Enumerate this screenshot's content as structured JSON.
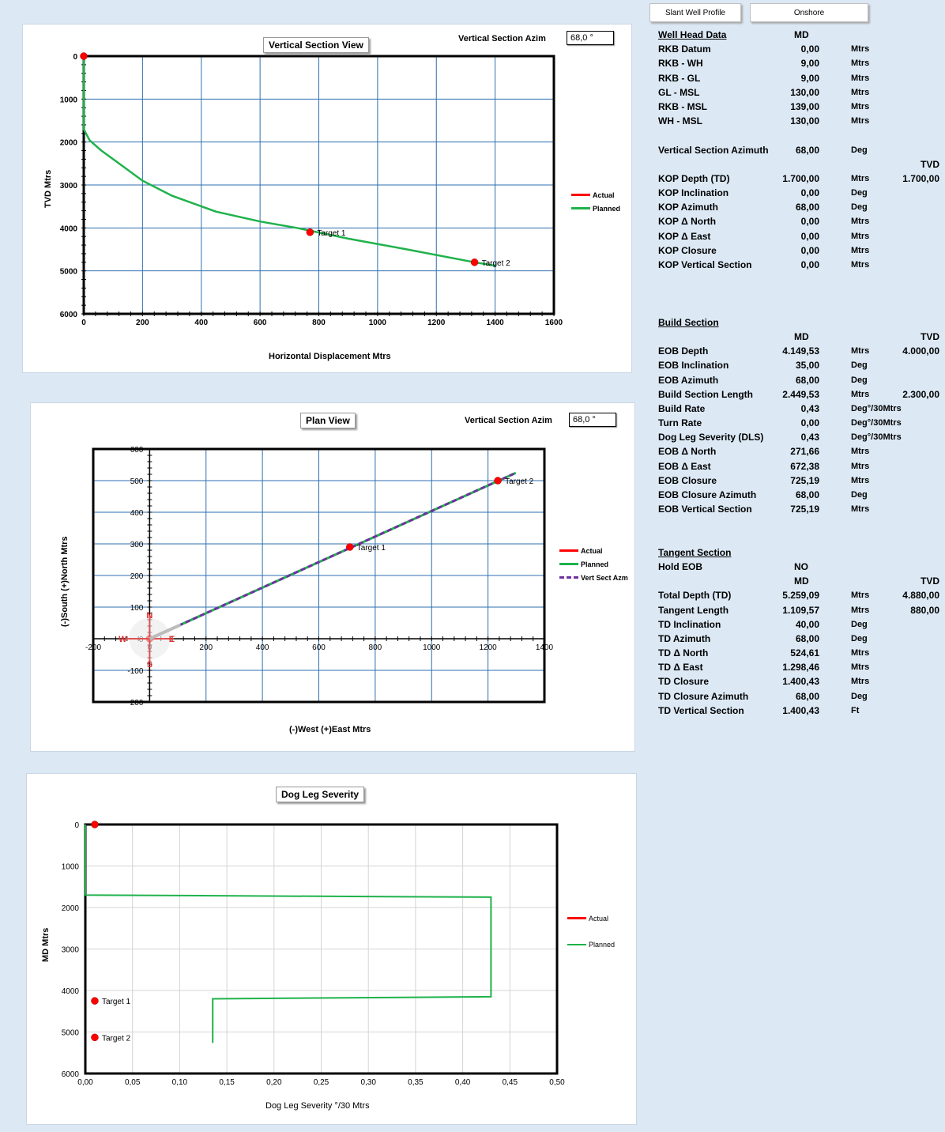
{
  "header": {
    "profile_button": "Slant Well Profile",
    "location_button": "Onshore"
  },
  "vertical_section": {
    "title": "Vertical Section View",
    "azim_label": "Vertical Section Azim",
    "azim_value": "68,0 °",
    "chart_data": {
      "type": "line",
      "xlabel": "Horizontal Displacement  Mtrs",
      "ylabel": "TVD Mtrs",
      "xlim": [
        0,
        1600
      ],
      "ylim": [
        0,
        6000
      ],
      "y_inverted": true,
      "x_ticks": [
        "0",
        "200",
        "400",
        "600",
        "800",
        "1000",
        "1200",
        "1400",
        "1600"
      ],
      "y_ticks": [
        "0",
        "1000",
        "2000",
        "3000",
        "4000",
        "5000",
        "6000"
      ],
      "grid": true,
      "legend_position": "right",
      "legend": [
        "Actual",
        "Planned"
      ],
      "series": [
        {
          "name": "Planned",
          "color": "#1fb24b",
          "points": [
            [
              0,
              0
            ],
            [
              0,
              1700
            ],
            [
              20,
              1960
            ],
            [
              60,
              2200
            ],
            [
              120,
              2500
            ],
            [
              200,
              2900
            ],
            [
              300,
              3250
            ],
            [
              450,
              3620
            ],
            [
              600,
              3850
            ],
            [
              725,
              4000
            ],
            [
              900,
              4250
            ],
            [
              1100,
              4500
            ],
            [
              1330,
              4800
            ],
            [
              1400,
              4880
            ]
          ]
        },
        {
          "name": "Actual",
          "color": "#ff0000",
          "points": [
            [
              0,
              0
            ]
          ]
        }
      ],
      "targets": [
        {
          "label": "Target 1",
          "x": 770,
          "y": 4100
        },
        {
          "label": "Target 2",
          "x": 1330,
          "y": 4800
        }
      ]
    }
  },
  "plan_view": {
    "title": "Plan View",
    "azim_label": "Vertical Section Azim",
    "azim_value": "68,0 °",
    "compass": {
      "n": "N",
      "s": "S",
      "e": "E",
      "w": "W"
    },
    "chart_data": {
      "type": "line",
      "xlabel": "(-)West  (+)East  Mtrs",
      "ylabel": "(-)South (+)North Mtrs",
      "xlim": [
        -200,
        1400
      ],
      "ylim": [
        -200,
        600
      ],
      "x_ticks": [
        "-200",
        "0",
        "200",
        "400",
        "600",
        "800",
        "1000",
        "1200",
        "1400"
      ],
      "y_ticks": [
        "-200",
        "-100",
        "0",
        "100",
        "200",
        "300",
        "400",
        "500",
        "600"
      ],
      "grid": true,
      "legend_position": "right",
      "legend": [
        "Actual",
        "Planned",
        "Vert Sect Azm"
      ],
      "series": [
        {
          "name": "Planned",
          "color": "#1fb24b",
          "points": [
            [
              0,
              0
            ],
            [
              1298.46,
              524.61
            ]
          ]
        },
        {
          "name": "Vert Sect Azm",
          "color": "#7030a0",
          "points": [
            [
              0,
              0
            ],
            [
              1298.46,
              524.61
            ]
          ]
        },
        {
          "name": "Actual",
          "color": "#ff0000",
          "points": [
            [
              0,
              0
            ]
          ]
        }
      ],
      "targets": [
        {
          "label": "Target 1",
          "x": 710,
          "y": 290
        },
        {
          "label": "Target 2",
          "x": 1235,
          "y": 500
        }
      ]
    }
  },
  "dls_chart": {
    "title": "Dog Leg Severity",
    "chart_data": {
      "type": "line",
      "xlabel": "Dog Leg Severity  °/30 Mtrs",
      "ylabel": "MD Mtrs",
      "xlim": [
        0,
        0.5
      ],
      "ylim": [
        0,
        6000
      ],
      "y_inverted": true,
      "x_ticks": [
        "0,00",
        "0,05",
        "0,10",
        "0,15",
        "0,20",
        "0,25",
        "0,30",
        "0,35",
        "0,40",
        "0,45",
        "0,50"
      ],
      "y_ticks": [
        "0",
        "1000",
        "2000",
        "3000",
        "4000",
        "5000",
        "6000"
      ],
      "grid": true,
      "legend_position": "right",
      "legend": [
        "Actual",
        "Planned"
      ],
      "series": [
        {
          "name": "Planned",
          "color": "#1fb24b",
          "points": [
            [
              0,
              0
            ],
            [
              0,
              1700
            ],
            [
              0.43,
              1750
            ],
            [
              0.43,
              4150
            ],
            [
              0.135,
              4200
            ],
            [
              0.135,
              5260
            ]
          ]
        },
        {
          "name": "Actual",
          "color": "#ff0000",
          "points": [
            [
              0.01,
              0
            ]
          ]
        }
      ],
      "targets": [
        {
          "label": "Target 1",
          "x": 0.01,
          "y": 4250
        },
        {
          "label": "Target 2",
          "x": 0.01,
          "y": 5130
        }
      ]
    }
  },
  "well_data": {
    "rows": [
      {
        "label": "Well Head Data",
        "md": "MD",
        "section": true,
        "md_header": true
      },
      {
        "label": "RKB Datum",
        "md": "0,00",
        "unit": "Mtrs"
      },
      {
        "label": "RKB - WH",
        "md": "9,00",
        "unit": "Mtrs"
      },
      {
        "label": "RKB - GL",
        "md": "9,00",
        "unit": "Mtrs"
      },
      {
        "label": "GL - MSL",
        "md": "130,00",
        "unit": "Mtrs"
      },
      {
        "label": "RKB - MSL",
        "md": "139,00",
        "unit": "Mtrs"
      },
      {
        "label": "WH - MSL",
        "md": "130,00",
        "unit": "Mtrs"
      },
      {
        "label": ""
      },
      {
        "label": "Vertical Section Azimuth",
        "md": "68,00",
        "unit": "Deg"
      },
      {
        "label": "",
        "tvd": "TVD"
      },
      {
        "label": "KOP Depth (TD)",
        "md": "1.700,00",
        "unit": "Mtrs",
        "tvd": "1.700,00"
      },
      {
        "label": "KOP Inclination",
        "md": "0,00",
        "unit": "Deg"
      },
      {
        "label": "KOP Azimuth",
        "md": "68,00",
        "unit": "Deg"
      },
      {
        "label": "KOP Δ North",
        "md": "0,00",
        "unit": "Mtrs"
      },
      {
        "label": "KOP Δ East",
        "md": "0,00",
        "unit": "Mtrs"
      },
      {
        "label": "KOP Closure",
        "md": "0,00",
        "unit": "Mtrs"
      },
      {
        "label": "KOP Vertical Section",
        "md": "0,00",
        "unit": "Mtrs"
      },
      {
        "label": ""
      },
      {
        "label": ""
      },
      {
        "label": ""
      },
      {
        "label": "Build Section",
        "section": true
      },
      {
        "label": "",
        "md": "MD",
        "tvd": "TVD",
        "md_header": true
      },
      {
        "label": "EOB Depth",
        "md": "4.149,53",
        "unit": "Mtrs",
        "tvd": "4.000,00"
      },
      {
        "label": "EOB Inclination",
        "md": "35,00",
        "unit": "Deg"
      },
      {
        "label": "EOB Azimuth",
        "md": "68,00",
        "unit": "Deg"
      },
      {
        "label": "Build Section Length",
        "md": "2.449,53",
        "unit": "Mtrs",
        "tvd": "2.300,00"
      },
      {
        "label": "Build Rate",
        "md": "0,43",
        "unit": "Deg°/30Mtrs"
      },
      {
        "label": "Turn Rate",
        "md": "0,00",
        "unit": "Deg°/30Mtrs"
      },
      {
        "label": "Dog Leg Severity (DLS)",
        "md": "0,43",
        "unit": "Deg°/30Mtrs"
      },
      {
        "label": "EOB Δ North",
        "md": "271,66",
        "unit": "Mtrs"
      },
      {
        "label": "EOB Δ East",
        "md": "672,38",
        "unit": "Mtrs"
      },
      {
        "label": "EOB Closure",
        "md": "725,19",
        "unit": "Mtrs"
      },
      {
        "label": "EOB Closure Azimuth",
        "md": "68,00",
        "unit": "Deg"
      },
      {
        "label": "EOB Vertical Section",
        "md": "725,19",
        "unit": "Mtrs"
      },
      {
        "label": ""
      },
      {
        "label": ""
      },
      {
        "label": "Tangent Section",
        "section": true
      },
      {
        "label": "Hold EOB",
        "md": "NO",
        "md_header": true
      },
      {
        "label": "",
        "md": "MD",
        "tvd": "TVD",
        "md_header": true
      },
      {
        "label": "Total Depth (TD)",
        "md": "5.259,09",
        "unit": "Mtrs",
        "tvd": "4.880,00"
      },
      {
        "label": "Tangent Length",
        "md": "1.109,57",
        "unit": "Mtrs",
        "tvd": "880,00"
      },
      {
        "label": "TD Inclination",
        "md": "40,00",
        "unit": "Deg"
      },
      {
        "label": "TD Azimuth",
        "md": "68,00",
        "unit": "Deg"
      },
      {
        "label": "TD Δ North",
        "md": "524,61",
        "unit": "Mtrs"
      },
      {
        "label": "TD Δ East",
        "md": "1.298,46",
        "unit": "Mtrs"
      },
      {
        "label": "TD Closure",
        "md": "1.400,43",
        "unit": "Mtrs"
      },
      {
        "label": "TD Closure Azimuth",
        "md": "68,00",
        "unit": "Deg"
      },
      {
        "label": "TD Vertical Section",
        "md": "1.400,43",
        "unit": "Ft"
      }
    ]
  }
}
